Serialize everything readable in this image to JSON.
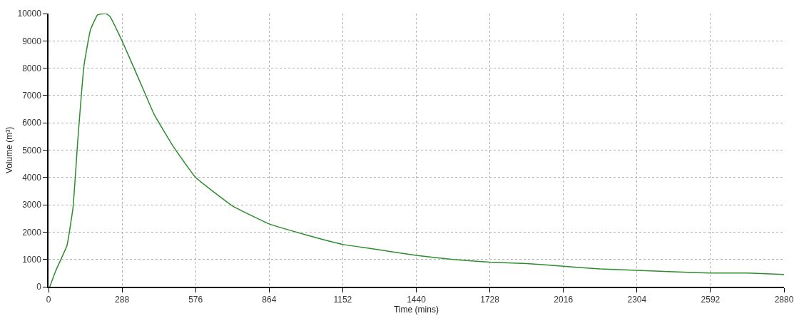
{
  "chart_data": {
    "type": "line",
    "xlabel": "Time (mins)",
    "ylabel": "Volume (m³)",
    "xlim": [
      0,
      2880
    ],
    "xticks": [
      0,
      288,
      576,
      864,
      1152,
      1440,
      1728,
      2016,
      2304,
      2592,
      2880
    ],
    "ylim": [
      0,
      10000
    ],
    "yticks": [
      0,
      1000,
      2000,
      3000,
      4000,
      5000,
      6000,
      7000,
      8000,
      9000,
      10000
    ],
    "grid": true,
    "marker": "none",
    "line_style": "solid",
    "series": [
      {
        "color": "#2e8b2e",
        "x": [
          5,
          29,
          72,
          96,
          115,
          139,
          164,
          192,
          225,
          240,
          260,
          288,
          356,
          414,
          491,
          576,
          722,
          864,
          1008,
          1152,
          1296,
          1440,
          1584,
          1728,
          1872,
          2016,
          2160,
          2304,
          2448,
          2592,
          2736,
          2880
        ],
        "values": [
          0,
          600,
          1500,
          2900,
          5400,
          8100,
          9400,
          9950,
          10000,
          9900,
          9550,
          9000,
          7550,
          6300,
          5100,
          4000,
          2950,
          2300,
          1900,
          1550,
          1350,
          1150,
          1000,
          900,
          850,
          750,
          650,
          600,
          550,
          500,
          500,
          450
        ]
      }
    ]
  }
}
